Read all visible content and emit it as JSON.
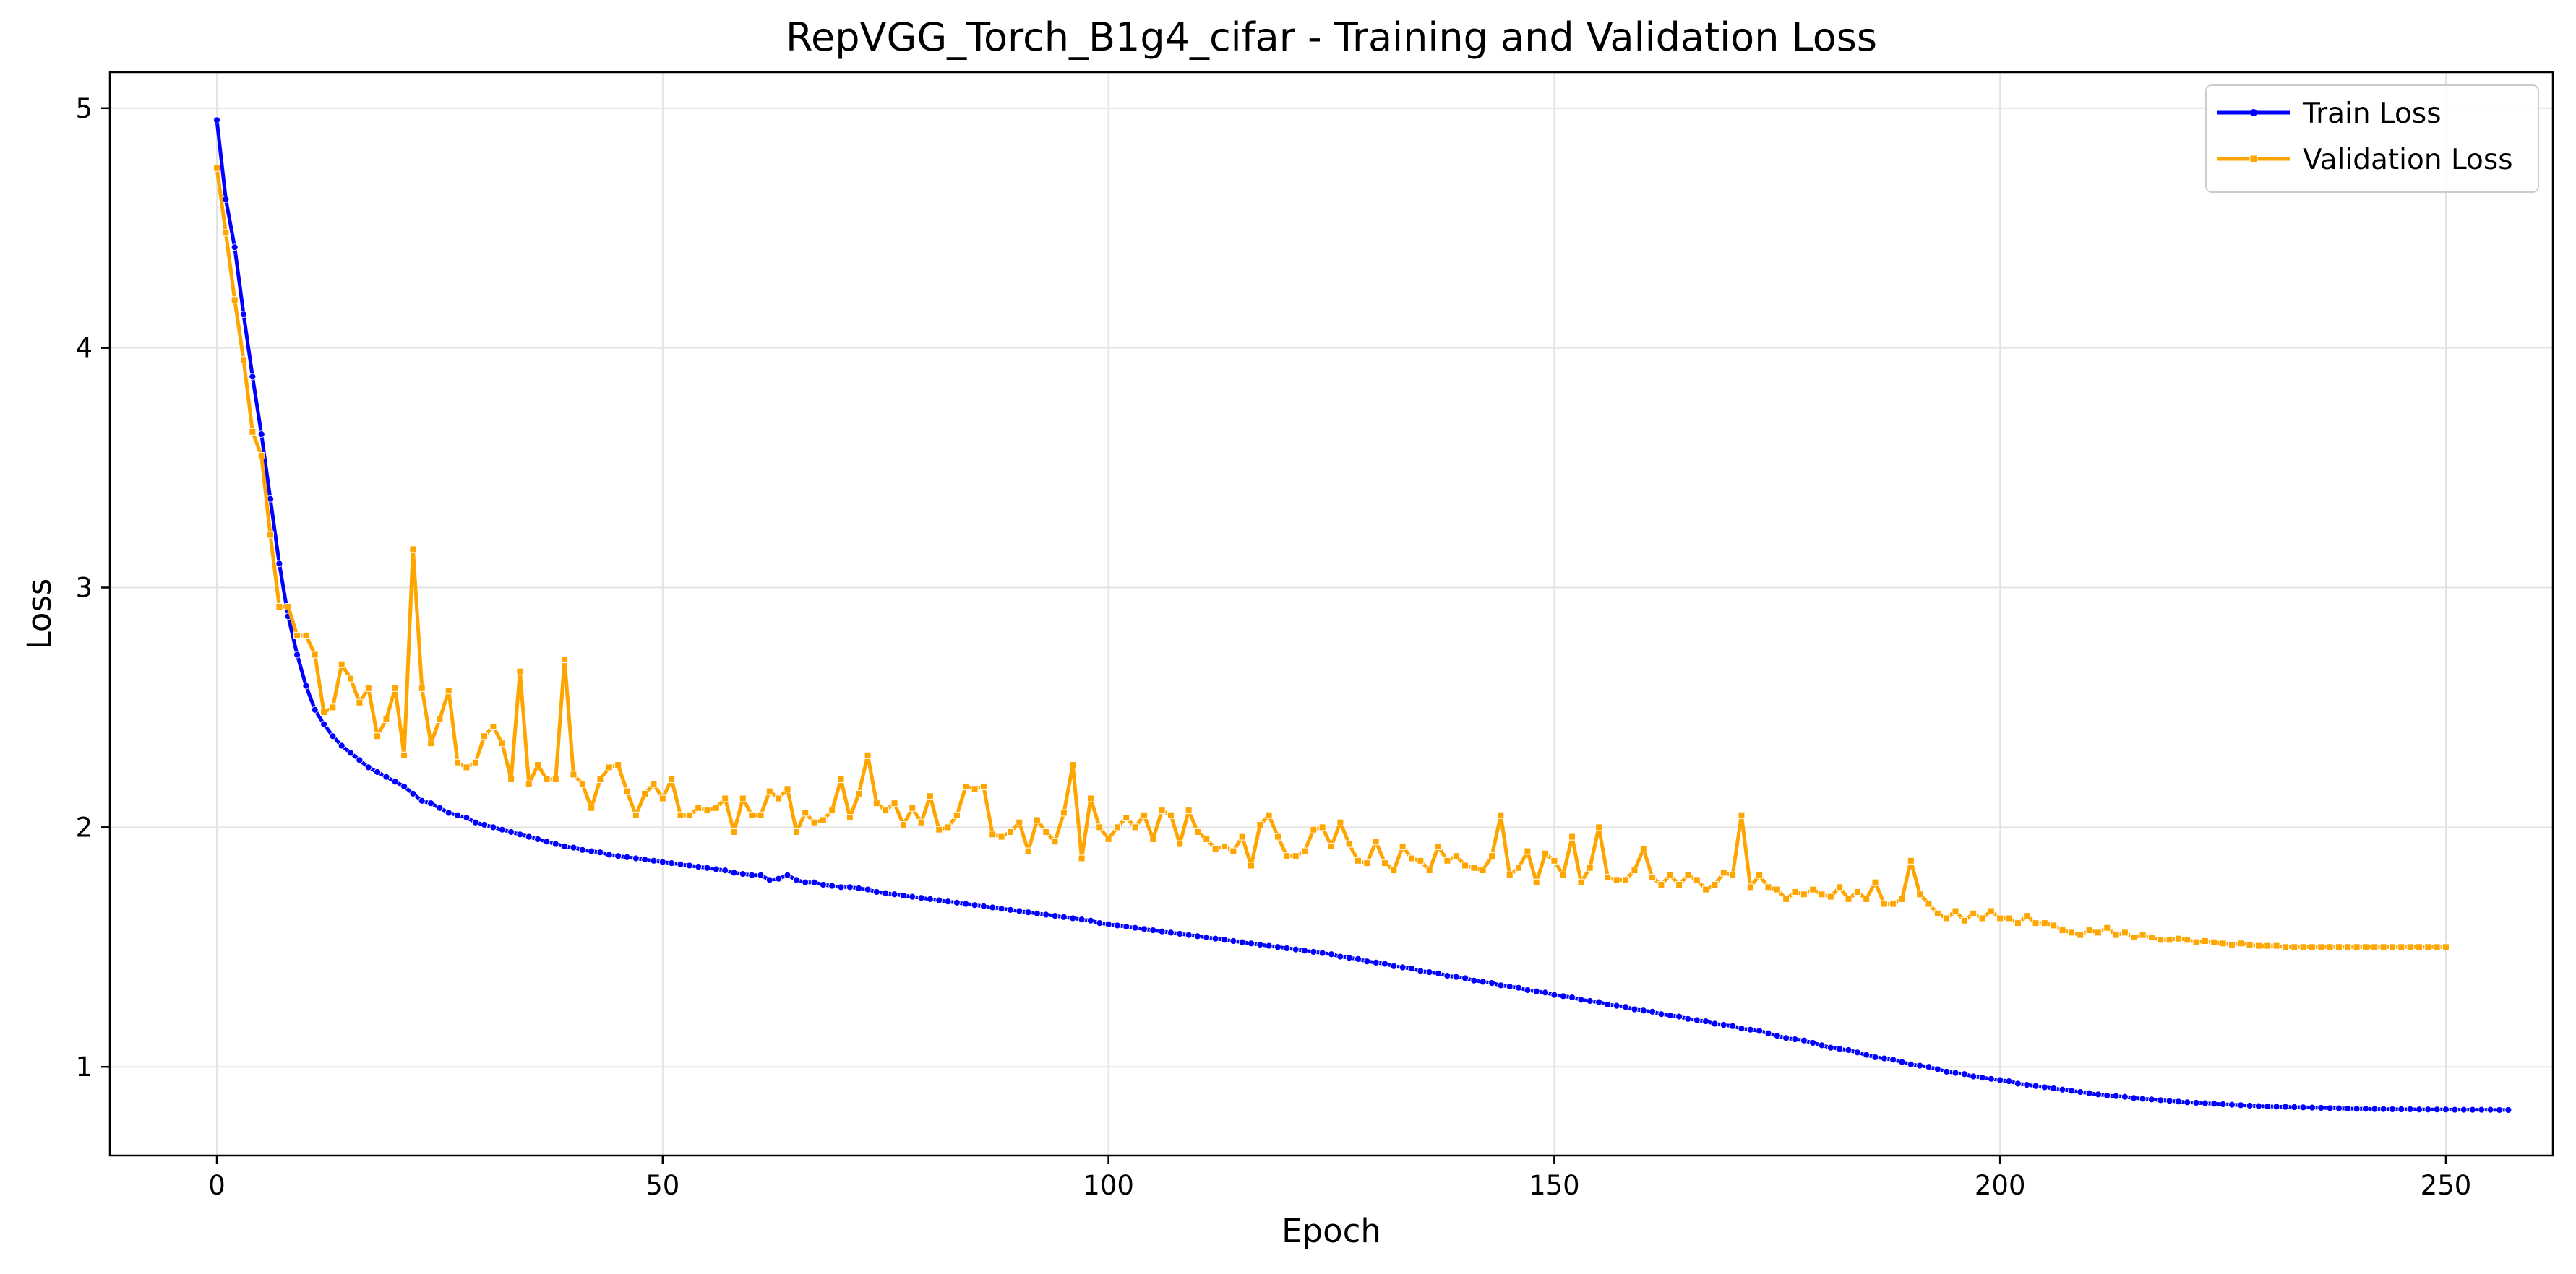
{
  "chart_data": {
    "type": "line",
    "title": "RepVGG_Torch_B1g4_cifar - Training and Validation Loss",
    "xlabel": "Epoch",
    "ylabel": "Loss",
    "xlim": [
      -12,
      262
    ],
    "ylim": [
      0.63,
      5.15
    ],
    "x_ticks": [
      0,
      50,
      100,
      150,
      200,
      250
    ],
    "y_ticks": [
      1,
      2,
      3,
      4,
      5
    ],
    "grid": true,
    "legend_position": "top-right",
    "x_start": 0,
    "x_step": 1,
    "series": [
      {
        "name": "Train Loss",
        "color": "#0000ff",
        "marker": "circle",
        "values": [
          4.95,
          4.62,
          4.42,
          4.14,
          3.88,
          3.64,
          3.37,
          3.1,
          2.88,
          2.72,
          2.59,
          2.49,
          2.43,
          2.38,
          2.34,
          2.31,
          2.28,
          2.25,
          2.23,
          2.21,
          2.19,
          2.17,
          2.14,
          2.11,
          2.1,
          2.08,
          2.06,
          2.05,
          2.04,
          2.02,
          2.01,
          2.0,
          1.99,
          1.98,
          1.97,
          1.96,
          1.95,
          1.94,
          1.93,
          1.92,
          1.915,
          1.905,
          1.9,
          1.895,
          1.885,
          1.88,
          1.875,
          1.87,
          1.865,
          1.86,
          1.855,
          1.85,
          1.845,
          1.84,
          1.835,
          1.83,
          1.825,
          1.82,
          1.81,
          1.805,
          1.8,
          1.8,
          1.78,
          1.785,
          1.8,
          1.78,
          1.77,
          1.77,
          1.76,
          1.755,
          1.75,
          1.75,
          1.745,
          1.74,
          1.73,
          1.725,
          1.72,
          1.715,
          1.71,
          1.705,
          1.7,
          1.695,
          1.69,
          1.685,
          1.68,
          1.675,
          1.67,
          1.665,
          1.66,
          1.655,
          1.65,
          1.645,
          1.64,
          1.635,
          1.63,
          1.625,
          1.62,
          1.615,
          1.61,
          1.6,
          1.595,
          1.59,
          1.585,
          1.58,
          1.575,
          1.57,
          1.565,
          1.56,
          1.555,
          1.55,
          1.545,
          1.54,
          1.535,
          1.53,
          1.525,
          1.52,
          1.515,
          1.51,
          1.505,
          1.5,
          1.495,
          1.49,
          1.485,
          1.48,
          1.475,
          1.47,
          1.46,
          1.455,
          1.45,
          1.44,
          1.435,
          1.43,
          1.42,
          1.415,
          1.41,
          1.4,
          1.395,
          1.39,
          1.38,
          1.375,
          1.37,
          1.36,
          1.355,
          1.35,
          1.34,
          1.335,
          1.33,
          1.32,
          1.315,
          1.31,
          1.3,
          1.295,
          1.29,
          1.28,
          1.275,
          1.27,
          1.26,
          1.255,
          1.25,
          1.24,
          1.235,
          1.23,
          1.22,
          1.215,
          1.21,
          1.2,
          1.195,
          1.19,
          1.18,
          1.175,
          1.17,
          1.16,
          1.155,
          1.15,
          1.14,
          1.13,
          1.12,
          1.115,
          1.11,
          1.1,
          1.09,
          1.08,
          1.075,
          1.07,
          1.06,
          1.05,
          1.04,
          1.035,
          1.03,
          1.02,
          1.01,
          1.005,
          1.0,
          0.99,
          0.98,
          0.975,
          0.97,
          0.96,
          0.955,
          0.95,
          0.945,
          0.94,
          0.93,
          0.925,
          0.92,
          0.915,
          0.91,
          0.905,
          0.9,
          0.895,
          0.89,
          0.885,
          0.88,
          0.878,
          0.875,
          0.87,
          0.867,
          0.864,
          0.861,
          0.858,
          0.855,
          0.852,
          0.85,
          0.848,
          0.846,
          0.844,
          0.842,
          0.84,
          0.838,
          0.836,
          0.835,
          0.834,
          0.833,
          0.832,
          0.831,
          0.83,
          0.829,
          0.828,
          0.827,
          0.826,
          0.825,
          0.825,
          0.824,
          0.824,
          0.823,
          0.823,
          0.823,
          0.822,
          0.822,
          0.822,
          0.822,
          0.821,
          0.821,
          0.821,
          0.821,
          0.821,
          0.82,
          0.82
        ]
      },
      {
        "name": "Validation Loss",
        "color": "#ffa500",
        "marker": "square",
        "values": [
          4.75,
          4.48,
          4.2,
          3.95,
          3.65,
          3.55,
          3.22,
          2.92,
          2.92,
          2.8,
          2.8,
          2.72,
          2.48,
          2.5,
          2.68,
          2.62,
          2.52,
          2.58,
          2.38,
          2.45,
          2.58,
          2.3,
          3.16,
          2.58,
          2.35,
          2.45,
          2.57,
          2.27,
          2.25,
          2.27,
          2.38,
          2.42,
          2.35,
          2.2,
          2.65,
          2.18,
          2.26,
          2.2,
          2.2,
          2.7,
          2.22,
          2.18,
          2.08,
          2.2,
          2.25,
          2.26,
          2.15,
          2.05,
          2.14,
          2.18,
          2.12,
          2.2,
          2.05,
          2.05,
          2.08,
          2.07,
          2.08,
          2.12,
          1.98,
          2.12,
          2.05,
          2.05,
          2.15,
          2.12,
          2.16,
          1.98,
          2.06,
          2.02,
          2.03,
          2.07,
          2.2,
          2.04,
          2.14,
          2.3,
          2.1,
          2.07,
          2.1,
          2.01,
          2.08,
          2.02,
          2.13,
          1.99,
          2.0,
          2.05,
          2.17,
          2.16,
          2.17,
          1.97,
          1.96,
          1.98,
          2.02,
          1.9,
          2.03,
          1.98,
          1.94,
          2.06,
          2.26,
          1.87,
          2.12,
          2.0,
          1.95,
          2.0,
          2.04,
          2.0,
          2.05,
          1.95,
          2.07,
          2.05,
          1.93,
          2.07,
          1.98,
          1.95,
          1.91,
          1.92,
          1.9,
          1.96,
          1.84,
          2.01,
          2.05,
          1.96,
          1.88,
          1.88,
          1.9,
          1.99,
          2.0,
          1.92,
          2.02,
          1.93,
          1.86,
          1.85,
          1.94,
          1.85,
          1.82,
          1.92,
          1.87,
          1.86,
          1.82,
          1.92,
          1.86,
          1.88,
          1.84,
          1.83,
          1.82,
          1.88,
          2.05,
          1.8,
          1.83,
          1.9,
          1.77,
          1.89,
          1.86,
          1.8,
          1.96,
          1.77,
          1.83,
          2.0,
          1.79,
          1.78,
          1.78,
          1.82,
          1.91,
          1.79,
          1.76,
          1.8,
          1.76,
          1.8,
          1.78,
          1.74,
          1.76,
          1.81,
          1.8,
          2.05,
          1.75,
          1.8,
          1.75,
          1.74,
          1.7,
          1.73,
          1.72,
          1.74,
          1.72,
          1.71,
          1.75,
          1.7,
          1.73,
          1.7,
          1.77,
          1.68,
          1.68,
          1.7,
          1.86,
          1.72,
          1.68,
          1.64,
          1.62,
          1.65,
          1.61,
          1.64,
          1.62,
          1.65,
          1.62,
          1.62,
          1.6,
          1.63,
          1.6,
          1.6,
          1.59,
          1.57,
          1.56,
          1.55,
          1.57,
          1.56,
          1.58,
          1.55,
          1.56,
          1.54,
          1.55,
          1.54,
          1.53,
          1.53,
          1.535,
          1.53,
          1.52,
          1.525,
          1.52,
          1.515,
          1.51,
          1.515,
          1.51,
          1.505,
          1.505,
          1.505,
          1.5,
          1.5,
          1.5,
          1.5,
          1.5,
          1.5,
          1.5,
          1.5,
          1.5,
          1.5,
          1.5,
          1.5,
          1.5,
          1.5,
          1.5,
          1.5,
          1.5,
          1.5,
          1.5
        ]
      }
    ]
  }
}
